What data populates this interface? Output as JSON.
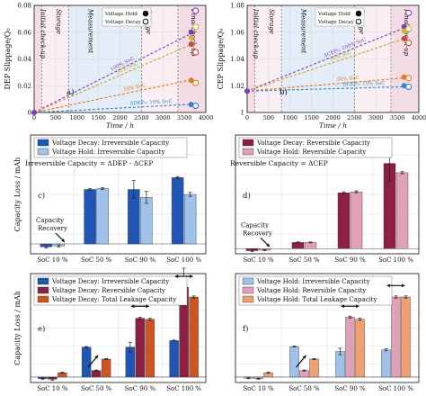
{
  "chart_data": [
    {
      "panel": "a)",
      "type": "line",
      "ylabel": "DEP Slippage/Q₀",
      "xlabel": "Time / h",
      "xlim": [
        0,
        4000
      ],
      "ylim": [
        0,
        0.08
      ],
      "xticks": [
        0,
        500,
        1000,
        1500,
        2000,
        2500,
        3000,
        3500,
        4000
      ],
      "yticks": [
        "0",
        "0.02",
        "0.04",
        "0.06",
        "0.08"
      ],
      "phases": [
        "Initial check-up",
        "Storage",
        "Measurement",
        "Storage",
        "Final check-up"
      ],
      "legend": [
        {
          "label": "Voltage Hold",
          "style": "filled"
        },
        {
          "label": "Voltage Decay",
          "style": "open"
        }
      ],
      "series": [
        {
          "label": "100% SoC",
          "color": "#7a3fb8",
          "end": 0.058
        },
        {
          "label": "90% SoC",
          "color": "#c9a61e",
          "end": 0.05
        },
        {
          "label": "50% SoC",
          "color": "#e07a1f",
          "end": 0.024
        },
        {
          "label": "ΔDEP₀: 10% SoC",
          "color": "#2f86c8",
          "end": 0.006
        }
      ],
      "points": {
        "x": 3700,
        "hold": [
          {
            "y": 0.06,
            "color": "#7a3fb8"
          },
          {
            "y": 0.056,
            "color": "#d4b52a"
          },
          {
            "y": 0.051,
            "color": "#c94b32"
          },
          {
            "y": 0.024,
            "color": "#e07a1f"
          },
          {
            "y": 0.006,
            "color": "#2f86c8"
          }
        ],
        "decay": [
          {
            "y": 0.076,
            "color": "#7a3fb8"
          },
          {
            "y": 0.064,
            "color": "#d4b52a"
          },
          {
            "y": 0.045,
            "color": "#c94b32"
          },
          {
            "y": 0.022,
            "color": "#e07a1f"
          },
          {
            "y": 0.005,
            "color": "#2f86c8"
          }
        ]
      }
    },
    {
      "panel": "b)",
      "type": "line",
      "ylabel": "CEP Slippage/Q₀",
      "xlabel": "Time / h",
      "xlim": [
        0,
        4000
      ],
      "ylim": [
        0.98,
        1.08
      ],
      "xticks": [
        0,
        500,
        1000,
        1500,
        2000,
        2500,
        3000,
        3500,
        4000
      ],
      "yticks": [
        "1",
        "1.02",
        "1.04",
        "1.06",
        "1.08"
      ],
      "phases": [
        "Initial check-up",
        "Storage",
        "Measurement",
        "Storage",
        "Final check-up"
      ],
      "legend": [
        {
          "label": "Voltage Hold",
          "style": "filled"
        },
        {
          "label": "Voltage Decay",
          "style": "open"
        }
      ],
      "series": [
        {
          "label": "ΔCEP₀: 100% SoC",
          "color": "#7a3fb8",
          "end": 1.058
        },
        {
          "label": "90% SoC",
          "color": "#c9a61e",
          "end": 1.048
        },
        {
          "label": "50% SoC",
          "color": "#e07a1f",
          "end": 1.012
        },
        {
          "label": "ΔCEP₀: 10% SoC",
          "color": "#2f86c8",
          "end": 1.004
        }
      ],
      "points": {
        "x": 3700,
        "hold": [
          {
            "y": 1.06,
            "color": "#7a3fb8"
          },
          {
            "y": 1.056,
            "color": "#d4b52a"
          },
          {
            "y": 1.049,
            "color": "#c94b32"
          },
          {
            "y": 1.013,
            "color": "#e07a1f"
          },
          {
            "y": 1.005,
            "color": "#2f86c8"
          }
        ],
        "decay": [
          {
            "y": 1.073,
            "color": "#7a3fb8"
          },
          {
            "y": 1.058,
            "color": "#d4b52a"
          },
          {
            "y": 1.045,
            "color": "#c94b32"
          },
          {
            "y": 1.012,
            "color": "#e07a1f"
          },
          {
            "y": 1.004,
            "color": "#2f86c8"
          }
        ]
      }
    },
    {
      "panel": "c)",
      "type": "bar",
      "ylabel": "Capacity Loss / mAh",
      "categories": [
        "SoC 10 %",
        "SoC 50 %",
        "SoC 90 %",
        "SoC 100 %"
      ],
      "ylim": [
        -10,
        110
      ],
      "legend": [
        "Voltage Decay: Irreversible Capacity",
        "Voltage Hold: Irreversible Capacity"
      ],
      "equation": "Irreversible Capacity = ΔDEP - ΔCEP",
      "annotation": "Capacity Recovery",
      "series": [
        {
          "name": "Voltage Decay: Irreversible Capacity",
          "color": "#1f56b5",
          "values": [
            -3,
            55,
            55,
            67
          ],
          "errors": [
            1,
            1,
            9,
            1
          ]
        },
        {
          "name": "Voltage Hold: Irreversible Capacity",
          "color": "#9fc2ea",
          "values": [
            -2,
            56,
            47,
            50
          ],
          "errors": [
            1,
            1,
            6,
            2
          ]
        }
      ]
    },
    {
      "panel": "d)",
      "type": "bar",
      "ylabel": "",
      "categories": [
        "SoC 10 %",
        "SoC 50 %",
        "SoC 90 %",
        "SoC 100 %"
      ],
      "ylim": [
        -10,
        220
      ],
      "legend": [
        "Voltage Decay: Reversible Capacity",
        "Voltage Hold: Reversible Capacity"
      ],
      "equation": "Reversible Capacity = ΔCEP",
      "annotation": "Capacity Recovery",
      "series": [
        {
          "name": "Voltage Decay: Reversible Capacity",
          "color": "#8c1f43",
          "values": [
            -4,
            12,
            108,
            165
          ],
          "errors": [
            2,
            1,
            2,
            35
          ]
        },
        {
          "name": "Voltage Hold: Reversible Capacity",
          "color": "#e0a0b8",
          "values": [
            -3,
            12,
            110,
            147
          ],
          "errors": [
            1,
            1,
            2,
            2
          ]
        }
      ]
    },
    {
      "panel": "e)",
      "type": "bar",
      "ylabel": "Capacity Loss / mAh",
      "categories": [
        "SoC 10 %",
        "SoC 50 %",
        "SoC 90 %",
        "SoC 100 %"
      ],
      "ylim": [
        -10,
        190
      ],
      "legend": [
        "Voltage Decay: Irreversible Capacity",
        "Voltage Decay: Reversible Capacity",
        "Voltage Decay: Total Leakage Capacity"
      ],
      "series": [
        {
          "name": "Voltage Decay: Irreversible Capacity",
          "color": "#1f56b5",
          "values": [
            -3,
            55,
            55,
            67
          ],
          "errors": [
            1,
            1,
            9,
            1
          ]
        },
        {
          "name": "Voltage Decay: Reversible Capacity",
          "color": "#8c1f43",
          "values": [
            -4,
            12,
            108,
            165
          ],
          "errors": [
            2,
            1,
            2,
            35
          ]
        },
        {
          "name": "Voltage Decay: Total Leakage Capacity",
          "color": "#cc5522",
          "values": [
            8,
            33,
            106,
            147
          ],
          "errors": [
            1,
            1,
            2,
            2
          ]
        }
      ]
    },
    {
      "panel": "f)",
      "type": "bar",
      "ylabel": "",
      "categories": [
        "SoC 10 %",
        "SoC 50 %",
        "SoC 90 %",
        "SoC 100 %"
      ],
      "ylim": [
        -10,
        190
      ],
      "legend": [
        "Voltage Hold: Irreversible Capacity",
        "Voltage Hold: Reversible Capacity",
        "Voltage Hold: Total Leakage Capacity"
      ],
      "series": [
        {
          "name": "Voltage Hold: Irreversible Capacity",
          "color": "#9fc2ea",
          "values": [
            -2,
            56,
            47,
            50
          ],
          "errors": [
            1,
            1,
            6,
            2
          ]
        },
        {
          "name": "Voltage Hold: Reversible Capacity",
          "color": "#e0a0b8",
          "values": [
            -3,
            12,
            110,
            147
          ],
          "errors": [
            1,
            1,
            2,
            2
          ]
        },
        {
          "name": "Voltage Hold: Total Leakage Capacity",
          "color": "#f0a070",
          "values": [
            8,
            33,
            106,
            147
          ],
          "errors": [
            1,
            1,
            2,
            2
          ]
        }
      ]
    }
  ]
}
